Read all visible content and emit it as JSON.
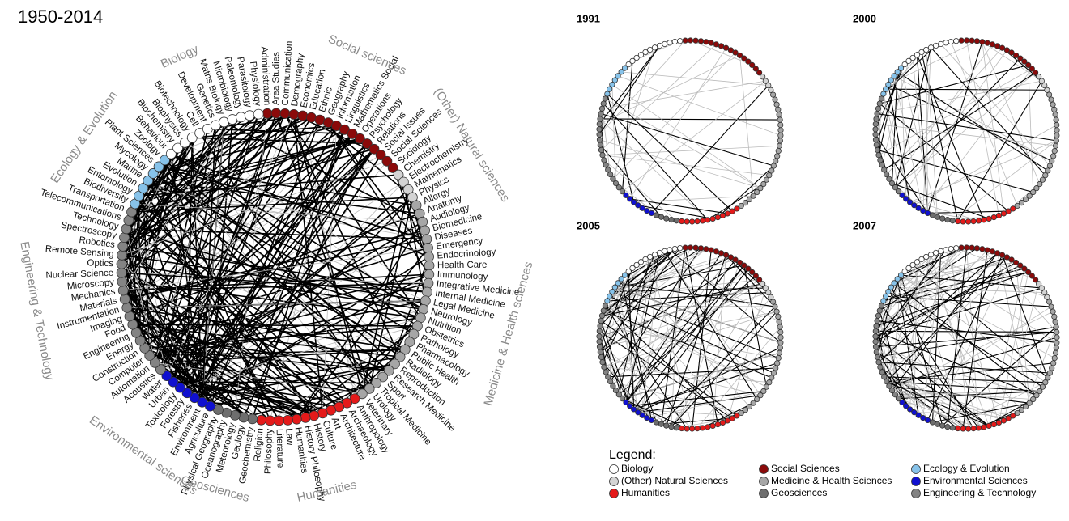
{
  "title": "1950-2014",
  "groups": [
    {
      "label": "Social sciences",
      "legend": "Social Sciences",
      "color": "#8b0a0a",
      "nodes": [
        "Administration",
        "Area Studies",
        "Communication",
        "Demography",
        "Economics",
        "Education",
        "Ethnic",
        "Geography",
        "Information",
        "Linguistics",
        "Mathematics Social",
        "Operations",
        "Psychology",
        "Relations",
        "Social Issues",
        "Social Sciences",
        "Sociology"
      ]
    },
    {
      "label": "(Other) Natural sciences",
      "legend": "(Other) Natural Sciences",
      "color": "#d4d4d4",
      "nodes": [
        "Chemistry",
        "Electrochemistry",
        "Mathematics",
        "Physics"
      ]
    },
    {
      "label": "Medicine & Health sciences",
      "legend": "Medicine & Health Sciences",
      "color": "#a6a6a6",
      "nodes": [
        "Allergy",
        "Anatomy",
        "Audiology",
        "Biomedicine",
        "Diseases",
        "Emergency",
        "Endocrinology",
        "Health Care",
        "Immunology",
        "Integrative Medicine",
        "Internal Medicine",
        "Legal Medicine",
        "Neurology",
        "Nutrition",
        "Obstetrics",
        "Pathology",
        "Pharmacology",
        "Public Health",
        "Radiology",
        "Reproduction",
        "Research Medicine",
        "Sport",
        "Tropical Medicine",
        "Urology",
        "Veterinary"
      ]
    },
    {
      "label": "Humanities",
      "legend": "Humanities",
      "color": "#e41a1a",
      "nodes": [
        "Anthropology",
        "Archaeology",
        "Architecture",
        "Art",
        "Culture",
        "History",
        "History Philosophy",
        "Humanities",
        "Law",
        "Literature",
        "Philosophy",
        "Religion"
      ]
    },
    {
      "label": "Geosciences",
      "legend": "Geosciences",
      "color": "#6e6e6e",
      "nodes": [
        "Geochemistry",
        "Geology",
        "Meteorology",
        "Oceanography",
        "Physical Geography"
      ]
    },
    {
      "label": "Environmental sciences",
      "legend": "Environmental Sciences",
      "color": "#1010d0",
      "nodes": [
        "Agriculture",
        "Environment",
        "Fisheries",
        "Forestry",
        "Toxicology",
        "Urban",
        "Water"
      ]
    },
    {
      "label": "Engineering & Technology",
      "legend": "Engineering & Technology",
      "color": "#848484",
      "nodes": [
        "Acoustics",
        "Automation",
        "Computer",
        "Construction",
        "Energy",
        "Engineering",
        "Food",
        "Imaging",
        "Instrumentation",
        "Materials",
        "Mechanics",
        "Microscopy",
        "Nuclear Science",
        "Optics",
        "Remote Sensing",
        "Robotics",
        "Spectroscopy",
        "Technology",
        "Telecommunications",
        "Transportation"
      ]
    },
    {
      "label": "Ecology & Evolution",
      "legend": "Ecology & Evolution",
      "color": "#87c3ea",
      "nodes": [
        "Biodiversity",
        "Entomology",
        "Evolution",
        "Marine",
        "Mycology",
        "Plant Sciences",
        "Zoology"
      ]
    },
    {
      "label": "Biology",
      "legend": "Biology",
      "color": "#ffffff",
      "nodes": [
        "Behaviour",
        "Biochemistry",
        "Biophysics",
        "Biotechnology",
        "Cell",
        "Development",
        "Genetics",
        "Maths Biology",
        "Microbiology",
        "Paleontology",
        "Parasitology",
        "Physiology"
      ]
    }
  ],
  "panels": [
    "1991",
    "2000",
    "2005",
    "2007"
  ],
  "legend_title": "Legend:"
}
